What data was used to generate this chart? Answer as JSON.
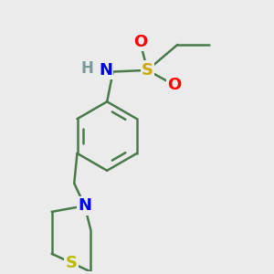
{
  "background_color": "#ebebeb",
  "bond_color": "#4a7a4a",
  "bond_width": 1.8,
  "atom_colors": {
    "H": "#7a9a9a",
    "N": "#0000ee",
    "O": "#ff0000",
    "S_sulfonamide": "#ccaa00",
    "S_thio": "#bbbb00"
  },
  "font_size": 13
}
